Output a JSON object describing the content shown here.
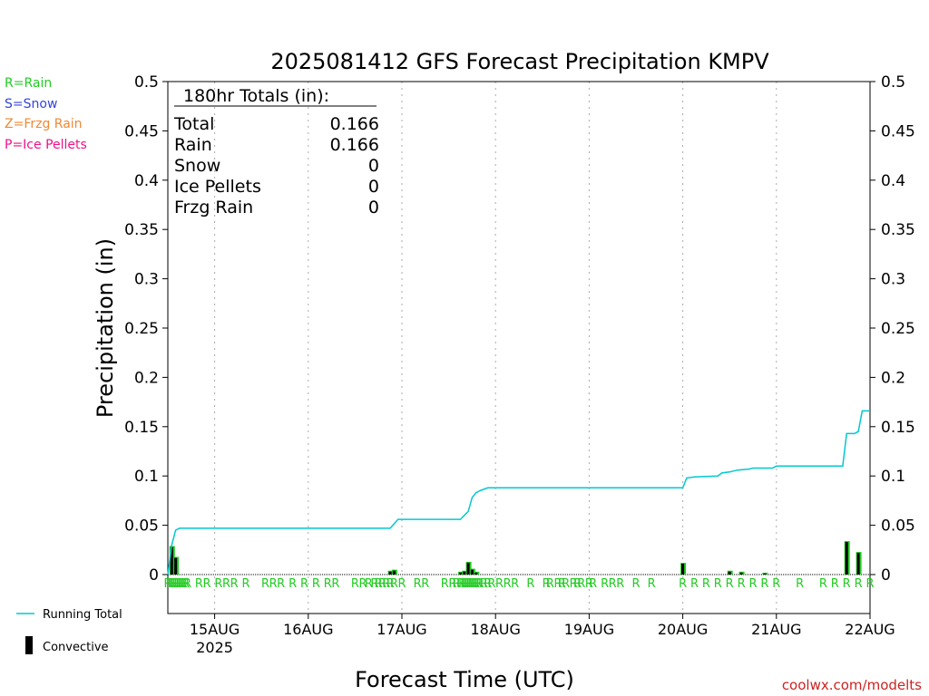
{
  "chart_data": {
    "type": "line",
    "title": "2025081412 GFS Forecast Precipitation KMPV",
    "xlabel": "Forecast Time (UTC)",
    "ylabel": "Precipitation (in)",
    "ylim": [
      0,
      0.5
    ],
    "yticks": [
      "0",
      "0.05",
      "0.1",
      "0.15",
      "0.2",
      "0.25",
      "0.3",
      "0.35",
      "0.4",
      "0.45",
      "0.5"
    ],
    "xlim_hours": [
      0,
      180
    ],
    "xticks": [
      {
        "label": "15AUG",
        "hour": 12,
        "sublabel": "2025"
      },
      {
        "label": "16AUG",
        "hour": 36
      },
      {
        "label": "17AUG",
        "hour": 60
      },
      {
        "label": "18AUG",
        "hour": 84
      },
      {
        "label": "19AUG",
        "hour": 108
      },
      {
        "label": "20AUG",
        "hour": 132
      },
      {
        "label": "21AUG",
        "hour": 156
      },
      {
        "label": "22AUG",
        "hour": 180
      }
    ],
    "grid": true,
    "series": [
      {
        "name": "Running Total",
        "color": "#00c8d2",
        "x": [
          0,
          1,
          2,
          3,
          57,
          59,
          75,
          76,
          77,
          78,
          79,
          80,
          82,
          84,
          132,
          133,
          135,
          141,
          142,
          144,
          146,
          149,
          150,
          155,
          156,
          173,
          174,
          176,
          177,
          178,
          180
        ],
        "y": [
          0,
          0.03,
          0.045,
          0.047,
          0.047,
          0.056,
          0.056,
          0.06,
          0.064,
          0.078,
          0.083,
          0.085,
          0.088,
          0.088,
          0.088,
          0.098,
          0.099,
          0.1,
          0.103,
          0.104,
          0.106,
          0.107,
          0.108,
          0.108,
          0.11,
          0.11,
          0.143,
          0.143,
          0.145,
          0.166,
          0.166
        ]
      },
      {
        "name": "Convective",
        "type": "bar",
        "color": "#000000",
        "x": [
          1,
          2,
          57,
          58,
          75,
          76,
          77,
          78,
          79,
          132,
          144,
          147,
          153,
          174,
          177
        ],
        "y": [
          0.028,
          0.017,
          0.003,
          0.004,
          0.002,
          0.003,
          0.012,
          0.005,
          0.002,
          0.011,
          0.003,
          0.002,
          0.001,
          0.033,
          0.022
        ]
      }
    ],
    "precip_type_hours": [
      0,
      0.5,
      1,
      1.5,
      2,
      2.5,
      3,
      3.5,
      4,
      4.5,
      5,
      8,
      10,
      13,
      15,
      17,
      20,
      25,
      27,
      29,
      32,
      35,
      38,
      41,
      43,
      48,
      50,
      51.5,
      53,
      54,
      55,
      56,
      57,
      58,
      60,
      64,
      66,
      71,
      73,
      74,
      75,
      75.5,
      76,
      76.5,
      77,
      77.5,
      78,
      78.5,
      79,
      79.5,
      80,
      81,
      82,
      83,
      85,
      87,
      89,
      93,
      97,
      98,
      100,
      101,
      102,
      104,
      105,
      106,
      108,
      109,
      112,
      114,
      116,
      120,
      124,
      132,
      135,
      138,
      141,
      144,
      147,
      150,
      153,
      156,
      162,
      168,
      171,
      174,
      177,
      180
    ]
  },
  "precip_type_marker": "R",
  "totals_box": {
    "heading": "180hr Totals (in):",
    "rows": [
      {
        "label": "Total",
        "value": "0.166"
      },
      {
        "label": "Rain",
        "value": "0.166"
      },
      {
        "label": "Snow",
        "value": "0"
      },
      {
        "label": "Ice Pellets",
        "value": "0"
      },
      {
        "label": "Frzg Rain",
        "value": "0"
      }
    ]
  },
  "type_legend": [
    {
      "text": "R=Rain",
      "color": "#22cc22"
    },
    {
      "text": "S=Snow",
      "color": "#3344dd"
    },
    {
      "text": "Z=Frzg Rain",
      "color": "#ee8833"
    },
    {
      "text": "P=Ice Pellets",
      "color": "#ee1188"
    }
  ],
  "series_legend": [
    {
      "text": "Running Total",
      "color": "#00c8d2"
    },
    {
      "text": "Convective",
      "color": "#000000"
    }
  ],
  "watermark": {
    "text": "coolwx.com/modelts",
    "color": "#cc2222"
  },
  "colors": {
    "rain_bar": "#22cc22",
    "axis": "#000000",
    "grid": "#aaaaaa"
  }
}
